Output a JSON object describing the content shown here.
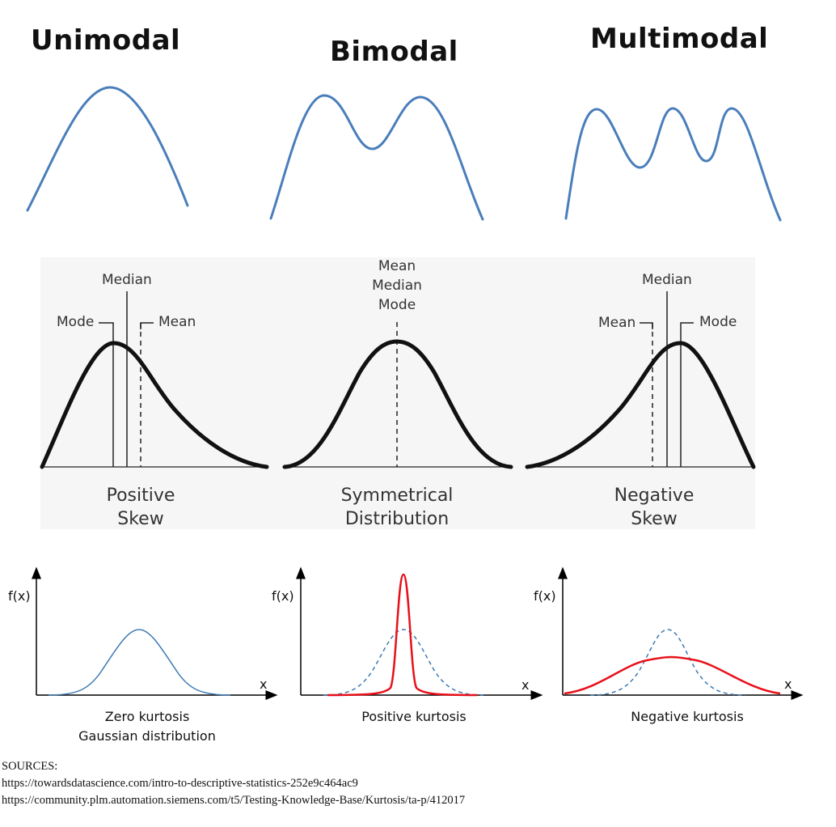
{
  "modality": {
    "unimodal": "Unimodal",
    "bimodal": "Bimodal",
    "multimodal": "Multimodal",
    "curve_color": "#4a7ebb"
  },
  "skew": {
    "positive": {
      "mode": "Mode",
      "median": "Median",
      "mean": "Mean",
      "caption_line1": "Positive",
      "caption_line2": "Skew"
    },
    "symmetric": {
      "mean": "Mean",
      "median": "Median",
      "mode": "Mode",
      "caption_line1": "Symmetrical",
      "caption_line2": "Distribution"
    },
    "negative": {
      "mean": "Mean",
      "median": "Median",
      "mode": "Mode",
      "caption_line1": "Negative",
      "caption_line2": "Skew"
    },
    "panel_color": "#f6f6f6"
  },
  "kurtosis": {
    "zero": {
      "ylabel": "f(x)",
      "xlabel": "x",
      "caption_line1": "Zero kurtosis",
      "caption_line2": "Gaussian distribution"
    },
    "positive": {
      "ylabel": "f(x)",
      "xlabel": "x",
      "caption": "Positive kurtosis"
    },
    "negative": {
      "ylabel": "f(x)",
      "xlabel": "x",
      "caption": "Negative kurtosis"
    },
    "reference_color": "#3d79b4",
    "highlight_color": "#e8101a"
  },
  "sources": {
    "heading": "SOURCES:",
    "links": [
      "https://towardsdatascience.com/intro-to-descriptive-statistics-252e9c464ac9",
      "https://community.plm.automation.siemens.com/t5/Testing-Knowledge-Base/Kurtosis/ta-p/412017"
    ]
  }
}
